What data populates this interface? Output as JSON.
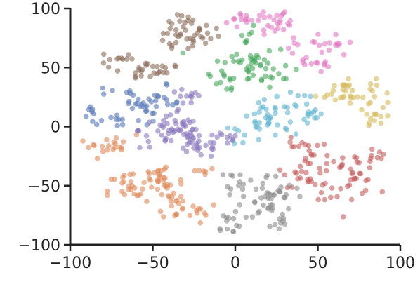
{
  "chart_data": {
    "type": "scatter",
    "title": "",
    "xlabel": "",
    "ylabel": "",
    "xlim": [
      -100,
      100
    ],
    "ylim": [
      -100,
      100
    ],
    "xticks": [
      -100,
      -50,
      0,
      50,
      100
    ],
    "yticks": [
      -100,
      -50,
      0,
      50,
      100
    ],
    "xtick_labels": [
      "−100",
      "−50",
      "0",
      "50",
      "100"
    ],
    "ytick_labels": [
      "−100",
      "−50",
      "0",
      "50",
      "100"
    ],
    "grid": false,
    "legend": "none",
    "point_opacity": 0.6,
    "series": [
      {
        "color": "#e377c2",
        "blobs": [
          [
            5,
            90,
            5,
            4,
            10
          ],
          [
            20,
            91,
            8,
            5,
            18
          ],
          [
            30,
            85,
            5,
            3,
            7
          ]
        ]
      },
      {
        "color": "#e377c2",
        "blobs": [
          [
            55,
            72,
            4,
            4,
            8
          ],
          [
            63,
            67,
            4,
            3,
            6
          ],
          [
            45,
            57,
            5,
            4,
            8
          ],
          [
            52,
            51,
            3,
            3,
            6
          ],
          [
            35,
            70,
            3,
            3,
            4
          ]
        ]
      },
      {
        "color": "#8c6d5a",
        "blobs": [
          [
            -35,
            74,
            8,
            6,
            22
          ],
          [
            -28,
            86,
            6,
            4,
            12
          ],
          [
            -18,
            80,
            6,
            4,
            10
          ],
          [
            -72,
            58,
            5,
            3,
            10
          ],
          [
            -63,
            46,
            6,
            4,
            10
          ],
          [
            -52,
            49,
            6,
            4,
            10
          ],
          [
            -42,
            50,
            5,
            4,
            6
          ]
        ]
      },
      {
        "color": "#44a65a",
        "blobs": [
          [
            10,
            52,
            12,
            9,
            45
          ],
          [
            7,
            74,
            5,
            5,
            8
          ],
          [
            -8,
            38,
            4,
            4,
            6
          ],
          [
            22,
            42,
            4,
            4,
            6
          ]
        ]
      },
      {
        "color": "#d5bb5e",
        "blobs": [
          [
            67,
            30,
            9,
            6,
            30
          ],
          [
            84,
            18,
            5,
            8,
            14
          ],
          [
            87,
            5,
            3,
            5,
            5
          ]
        ]
      },
      {
        "color": "#5577b8",
        "blobs": [
          [
            -50,
            20,
            9,
            7,
            30
          ],
          [
            -86,
            9,
            3,
            4,
            8
          ],
          [
            -73,
            6,
            5,
            3,
            8
          ],
          [
            -65,
            21,
            5,
            3,
            8
          ],
          [
            -78,
            30,
            2,
            2,
            3
          ]
        ]
      },
      {
        "color": "#8876bd",
        "blobs": [
          [
            -38,
            -3,
            10,
            8,
            45
          ],
          [
            -22,
            -15,
            8,
            6,
            30
          ],
          [
            -30,
            22,
            5,
            5,
            12
          ],
          [
            -5,
            -10,
            4,
            5,
            8
          ]
        ]
      },
      {
        "color": "#5fb4d0",
        "blobs": [
          [
            22,
            6,
            10,
            8,
            40
          ],
          [
            48,
            10,
            4,
            4,
            10
          ],
          [
            42,
            25,
            3,
            4,
            5
          ],
          [
            8,
            -8,
            4,
            4,
            5
          ]
        ]
      },
      {
        "color": "#c75d5d",
        "blobs": [
          [
            45,
            -35,
            8,
            8,
            30
          ],
          [
            70,
            -40,
            8,
            9,
            32
          ],
          [
            38,
            -18,
            5,
            4,
            10
          ],
          [
            85,
            -25,
            4,
            4,
            8
          ],
          [
            55,
            -55,
            4,
            4,
            6
          ]
        ]
      },
      {
        "color": "#e08a5a",
        "blobs": [
          [
            -86,
            -18,
            4,
            4,
            8
          ],
          [
            -72,
            -15,
            6,
            4,
            12
          ],
          [
            -65,
            -55,
            6,
            9,
            25
          ],
          [
            -45,
            -45,
            7,
            8,
            30
          ],
          [
            -35,
            -65,
            6,
            7,
            20
          ],
          [
            -20,
            -70,
            6,
            4,
            8
          ],
          [
            -20,
            -38,
            4,
            3,
            6
          ]
        ]
      },
      {
        "color": "#8a8a8a",
        "blobs": [
          [
            20,
            -60,
            8,
            10,
            45
          ],
          [
            3,
            -45,
            4,
            4,
            10
          ],
          [
            -5,
            -82,
            4,
            5,
            12
          ],
          [
            25,
            -82,
            4,
            4,
            8
          ]
        ]
      }
    ]
  }
}
